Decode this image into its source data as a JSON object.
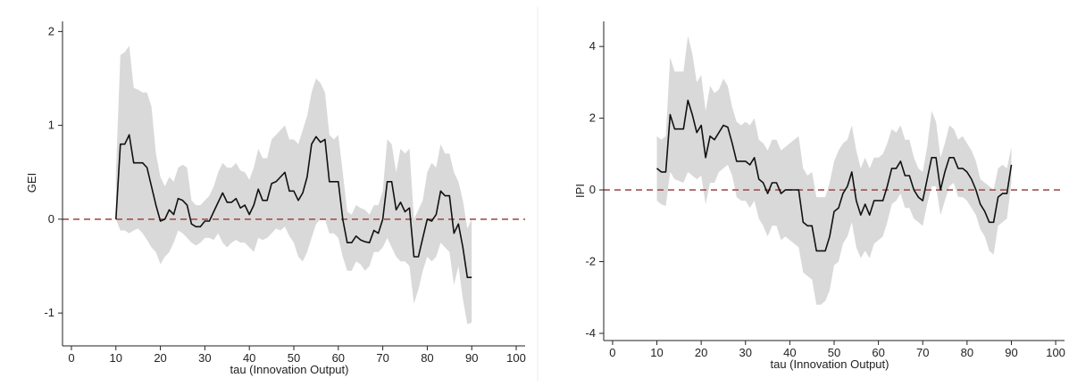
{
  "colors": {
    "band": "#d9d9d9",
    "line": "#111111",
    "zero_line": "#a0524f",
    "axis": "#222222"
  },
  "chart_data": [
    {
      "type": "line",
      "xlabel": "tau (Innovation Output)",
      "ylabel": "GEI",
      "xlim": [
        -2,
        102
      ],
      "ylim": [
        -1.35,
        2.07
      ],
      "xticks": [
        0,
        10,
        20,
        30,
        40,
        50,
        60,
        70,
        80,
        90,
        100
      ],
      "yticks": [
        -1,
        0,
        1,
        2
      ],
      "zero_line": 0,
      "x": [
        10,
        11,
        12,
        13,
        14,
        15,
        16,
        17,
        18,
        19,
        20,
        21,
        22,
        23,
        24,
        25,
        26,
        27,
        28,
        29,
        30,
        31,
        32,
        33,
        34,
        35,
        36,
        37,
        38,
        39,
        40,
        41,
        42,
        43,
        44,
        45,
        46,
        47,
        48,
        49,
        50,
        51,
        52,
        53,
        54,
        55,
        56,
        57,
        58,
        59,
        60,
        61,
        62,
        63,
        64,
        65,
        66,
        67,
        68,
        69,
        70,
        71,
        72,
        73,
        74,
        75,
        76,
        77,
        78,
        79,
        80,
        81,
        82,
        83,
        84,
        85,
        86,
        87,
        88,
        89,
        90
      ],
      "estimate": [
        0,
        0.8,
        0.8,
        0.9,
        0.6,
        0.6,
        0.6,
        0.55,
        0.35,
        0.15,
        -0.02,
        0,
        0.1,
        0.05,
        0.22,
        0.2,
        0.15,
        -0.05,
        -0.08,
        -0.08,
        -0.02,
        -0.02,
        0.08,
        0.18,
        0.28,
        0.18,
        0.18,
        0.22,
        0.12,
        0.15,
        0.05,
        0.15,
        0.32,
        0.2,
        0.2,
        0.38,
        0.4,
        0.45,
        0.5,
        0.3,
        0.3,
        0.2,
        0.28,
        0.45,
        0.8,
        0.88,
        0.82,
        0.85,
        0.4,
        0.4,
        0.4,
        0.0,
        -0.25,
        -0.25,
        -0.18,
        -0.22,
        -0.24,
        -0.25,
        -0.12,
        -0.15,
        0.0,
        0.4,
        0.4,
        0.1,
        0.18,
        0.08,
        0.12,
        -0.4,
        -0.4,
        -0.2,
        0.0,
        -0.02,
        0.05,
        0.3,
        0.25,
        0.25,
        -0.15,
        -0.05,
        -0.3,
        -0.62,
        -0.62
      ],
      "lower": [
        0,
        -0.12,
        -0.12,
        -0.15,
        -0.12,
        -0.1,
        -0.15,
        -0.22,
        -0.3,
        -0.35,
        -0.48,
        -0.4,
        -0.35,
        -0.25,
        -0.12,
        -0.15,
        -0.2,
        -0.25,
        -0.28,
        -0.25,
        -0.2,
        -0.2,
        -0.22,
        -0.15,
        -0.25,
        -0.3,
        -0.25,
        -0.22,
        -0.25,
        -0.25,
        -0.3,
        -0.35,
        -0.2,
        -0.22,
        -0.2,
        -0.15,
        -0.1,
        -0.12,
        -0.08,
        -0.18,
        -0.25,
        -0.4,
        -0.45,
        -0.35,
        -0.2,
        -0.05,
        0.0,
        0.0,
        -0.15,
        -0.15,
        -0.2,
        -0.4,
        -0.55,
        -0.55,
        -0.45,
        -0.48,
        -0.55,
        -0.5,
        -0.35,
        -0.35,
        -0.3,
        -0.2,
        -0.3,
        -0.4,
        -0.45,
        -0.45,
        -0.5,
        -0.9,
        -0.75,
        -0.55,
        -0.4,
        -0.45,
        -0.4,
        -0.25,
        -0.3,
        -0.35,
        -0.7,
        -0.5,
        -0.85,
        -1.12,
        -1.1
      ],
      "upper": [
        0.5,
        1.75,
        1.78,
        1.85,
        1.4,
        1.38,
        1.35,
        1.35,
        1.2,
        0.7,
        0.45,
        0.35,
        0.45,
        0.4,
        0.55,
        0.58,
        0.55,
        0.2,
        0.15,
        0.15,
        0.2,
        0.25,
        0.35,
        0.5,
        0.6,
        0.55,
        0.55,
        0.6,
        0.52,
        0.5,
        0.42,
        0.55,
        0.75,
        0.65,
        0.65,
        0.85,
        0.9,
        0.95,
        1.0,
        0.85,
        0.85,
        0.8,
        0.95,
        1.1,
        1.35,
        1.5,
        1.45,
        1.35,
        0.9,
        0.85,
        0.9,
        0.5,
        0.08,
        0.05,
        0.15,
        0.12,
        0.1,
        0.05,
        0.15,
        0.15,
        0.3,
        0.85,
        0.8,
        0.5,
        0.75,
        0.7,
        0.75,
        0.0,
        0.1,
        0.2,
        0.5,
        0.6,
        0.55,
        0.8,
        0.7,
        0.7,
        0.5,
        0.4,
        0.2,
        -0.1,
        0.0
      ]
    },
    {
      "type": "line",
      "xlabel": "tau (Innovation Output)",
      "ylabel": "IPI",
      "xlim": [
        -2,
        102
      ],
      "ylim": [
        -4.2,
        4.6
      ],
      "xticks": [
        0,
        10,
        20,
        30,
        40,
        50,
        60,
        70,
        80,
        90,
        100
      ],
      "yticks": [
        -4,
        -2,
        0,
        2,
        4
      ],
      "zero_line": 0,
      "x": [
        10,
        11,
        12,
        13,
        14,
        15,
        16,
        17,
        18,
        19,
        20,
        21,
        22,
        23,
        24,
        25,
        26,
        27,
        28,
        29,
        30,
        31,
        32,
        33,
        34,
        35,
        36,
        37,
        38,
        39,
        40,
        41,
        42,
        43,
        44,
        45,
        46,
        47,
        48,
        49,
        50,
        51,
        52,
        53,
        54,
        55,
        56,
        57,
        58,
        59,
        60,
        61,
        62,
        63,
        64,
        65,
        66,
        67,
        68,
        69,
        70,
        71,
        72,
        73,
        74,
        75,
        76,
        77,
        78,
        79,
        80,
        81,
        82,
        83,
        84,
        85,
        86,
        87,
        88,
        89,
        90
      ],
      "estimate": [
        0.6,
        0.5,
        0.5,
        2.1,
        1.7,
        1.7,
        1.7,
        2.5,
        2.1,
        1.6,
        1.8,
        0.9,
        1.5,
        1.4,
        1.6,
        1.8,
        1.75,
        1.3,
        0.8,
        0.8,
        0.8,
        0.7,
        0.9,
        0.3,
        0.2,
        -0.1,
        0.2,
        0.2,
        -0.1,
        0.0,
        0.0,
        0.0,
        0.0,
        -0.9,
        -1.0,
        -1.0,
        -1.7,
        -1.7,
        -1.7,
        -1.3,
        -0.6,
        -0.5,
        -0.1,
        0.1,
        0.5,
        -0.3,
        -0.7,
        -0.4,
        -0.7,
        -0.3,
        -0.3,
        -0.3,
        0.1,
        0.6,
        0.6,
        0.8,
        0.4,
        0.4,
        0.0,
        -0.2,
        -0.3,
        0.3,
        0.9,
        0.9,
        0.0,
        0.5,
        0.9,
        0.9,
        0.6,
        0.6,
        0.5,
        0.3,
        0.0,
        -0.4,
        -0.6,
        -0.9,
        -0.9,
        -0.2,
        -0.1,
        -0.1,
        0.7
      ],
      "lower": [
        -0.3,
        -0.4,
        -0.45,
        0.5,
        0.3,
        0.25,
        0.2,
        0.5,
        0.4,
        0.3,
        0.4,
        -0.4,
        0.2,
        0.2,
        0.5,
        0.6,
        0.7,
        0.4,
        -0.2,
        -0.3,
        -0.3,
        -0.5,
        -0.3,
        -0.8,
        -1.0,
        -1.3,
        -1.0,
        -1.0,
        -1.4,
        -1.3,
        -1.4,
        -1.5,
        -1.6,
        -2.3,
        -2.4,
        -2.5,
        -3.2,
        -3.2,
        -3.1,
        -2.8,
        -2.1,
        -2.0,
        -1.5,
        -1.3,
        -0.9,
        -1.6,
        -1.9,
        -1.7,
        -1.9,
        -1.5,
        -1.4,
        -1.3,
        -0.9,
        -0.4,
        -0.3,
        -0.1,
        -0.5,
        -0.5,
        -0.8,
        -0.9,
        -1.0,
        -0.4,
        0.1,
        0.1,
        -0.7,
        -0.3,
        0.1,
        0.2,
        -0.2,
        -0.2,
        -0.3,
        -0.5,
        -0.7,
        -1.1,
        -1.3,
        -1.7,
        -1.8,
        -1.0,
        -0.9,
        -0.8,
        0.2
      ],
      "upper": [
        1.5,
        1.4,
        1.5,
        3.7,
        3.3,
        3.3,
        3.3,
        4.3,
        3.8,
        3.0,
        3.2,
        2.2,
        2.9,
        2.7,
        2.8,
        3.1,
        2.9,
        2.3,
        1.9,
        1.8,
        1.9,
        1.8,
        2.0,
        1.4,
        1.3,
        1.1,
        1.4,
        1.4,
        1.1,
        1.2,
        1.3,
        1.4,
        1.5,
        0.6,
        0.4,
        0.5,
        -0.2,
        -0.2,
        -0.2,
        0.2,
        0.8,
        1.1,
        1.3,
        1.4,
        1.8,
        1.1,
        0.6,
        0.9,
        0.6,
        0.9,
        0.9,
        1.0,
        1.3,
        1.7,
        1.6,
        1.8,
        1.4,
        1.4,
        0.9,
        0.6,
        0.5,
        1.2,
        2.2,
        1.9,
        0.9,
        1.3,
        1.8,
        1.7,
        1.4,
        1.5,
        1.3,
        1.1,
        0.8,
        0.3,
        0.2,
        0.1,
        0.0,
        0.6,
        0.7,
        0.6,
        1.2
      ]
    }
  ]
}
